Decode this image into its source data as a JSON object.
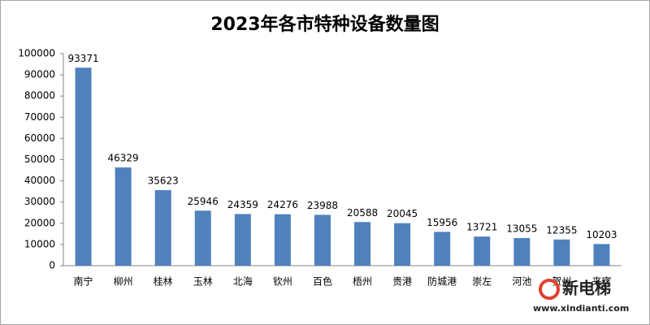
{
  "chart_data": {
    "type": "bar",
    "title": "2023年各市特种设备数量图",
    "categories": [
      "南宁",
      "柳州",
      "桂林",
      "玉林",
      "北海",
      "钦州",
      "百色",
      "梧州",
      "贵港",
      "防城港",
      "崇左",
      "河池",
      "贺州",
      "来宾"
    ],
    "values": [
      93371,
      46329,
      35623,
      25946,
      24359,
      24276,
      23988,
      20588,
      20045,
      15956,
      13721,
      13055,
      12355,
      10203
    ],
    "color": "#4f81bd",
    "ylim": [
      0,
      100000
    ],
    "yticks": [
      0,
      10000,
      20000,
      30000,
      40000,
      50000,
      60000,
      70000,
      80000,
      90000,
      100000
    ],
    "grid": false
  },
  "watermark": {
    "brand": "新电梯",
    "url": "www.xindianti.com"
  }
}
